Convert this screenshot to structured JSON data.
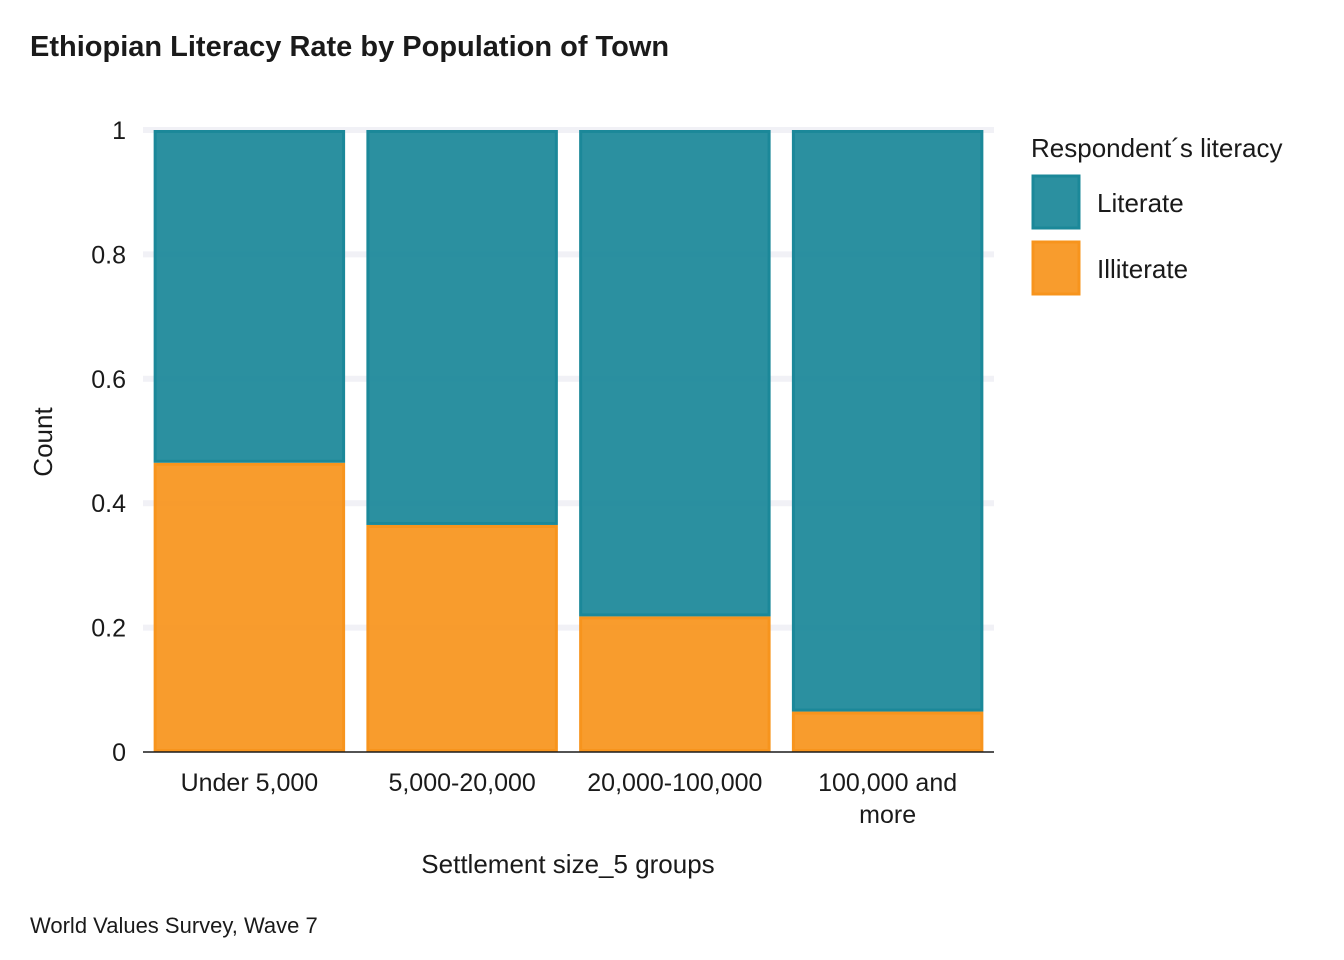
{
  "chart_data": {
    "type": "bar",
    "stacked": true,
    "title": "Ethiopian Literacy Rate by Population of Town",
    "xlabel": "Settlement size_5 groups",
    "ylabel": "Count",
    "caption": "World Values Survey,  Wave 7",
    "categories": [
      [
        "Under 5,000"
      ],
      [
        "5,000-20,000"
      ],
      [
        "20,000-100,000"
      ],
      [
        "100,000 and",
        "more"
      ]
    ],
    "series": [
      {
        "name": "Illiterate",
        "color": "#F7941D",
        "values": [
          0.465,
          0.365,
          0.218,
          0.065
        ]
      },
      {
        "name": "Literate",
        "color": "#1B8899",
        "values": [
          0.535,
          0.635,
          0.782,
          0.935
        ]
      }
    ],
    "ylim": [
      0,
      1
    ],
    "yticks": [
      0,
      0.2,
      0.4,
      0.6,
      0.8,
      1
    ],
    "ytick_labels": [
      "0",
      "0.2",
      "0.4",
      "0.6",
      "0.8",
      "1"
    ],
    "legend": {
      "title": "Respondent´s literacy",
      "position": "right",
      "entries": [
        {
          "label": "Literate",
          "color": "#1B8899"
        },
        {
          "label": "Illiterate",
          "color": "#F7941D"
        }
      ]
    },
    "grid": "horizontal major, light"
  }
}
